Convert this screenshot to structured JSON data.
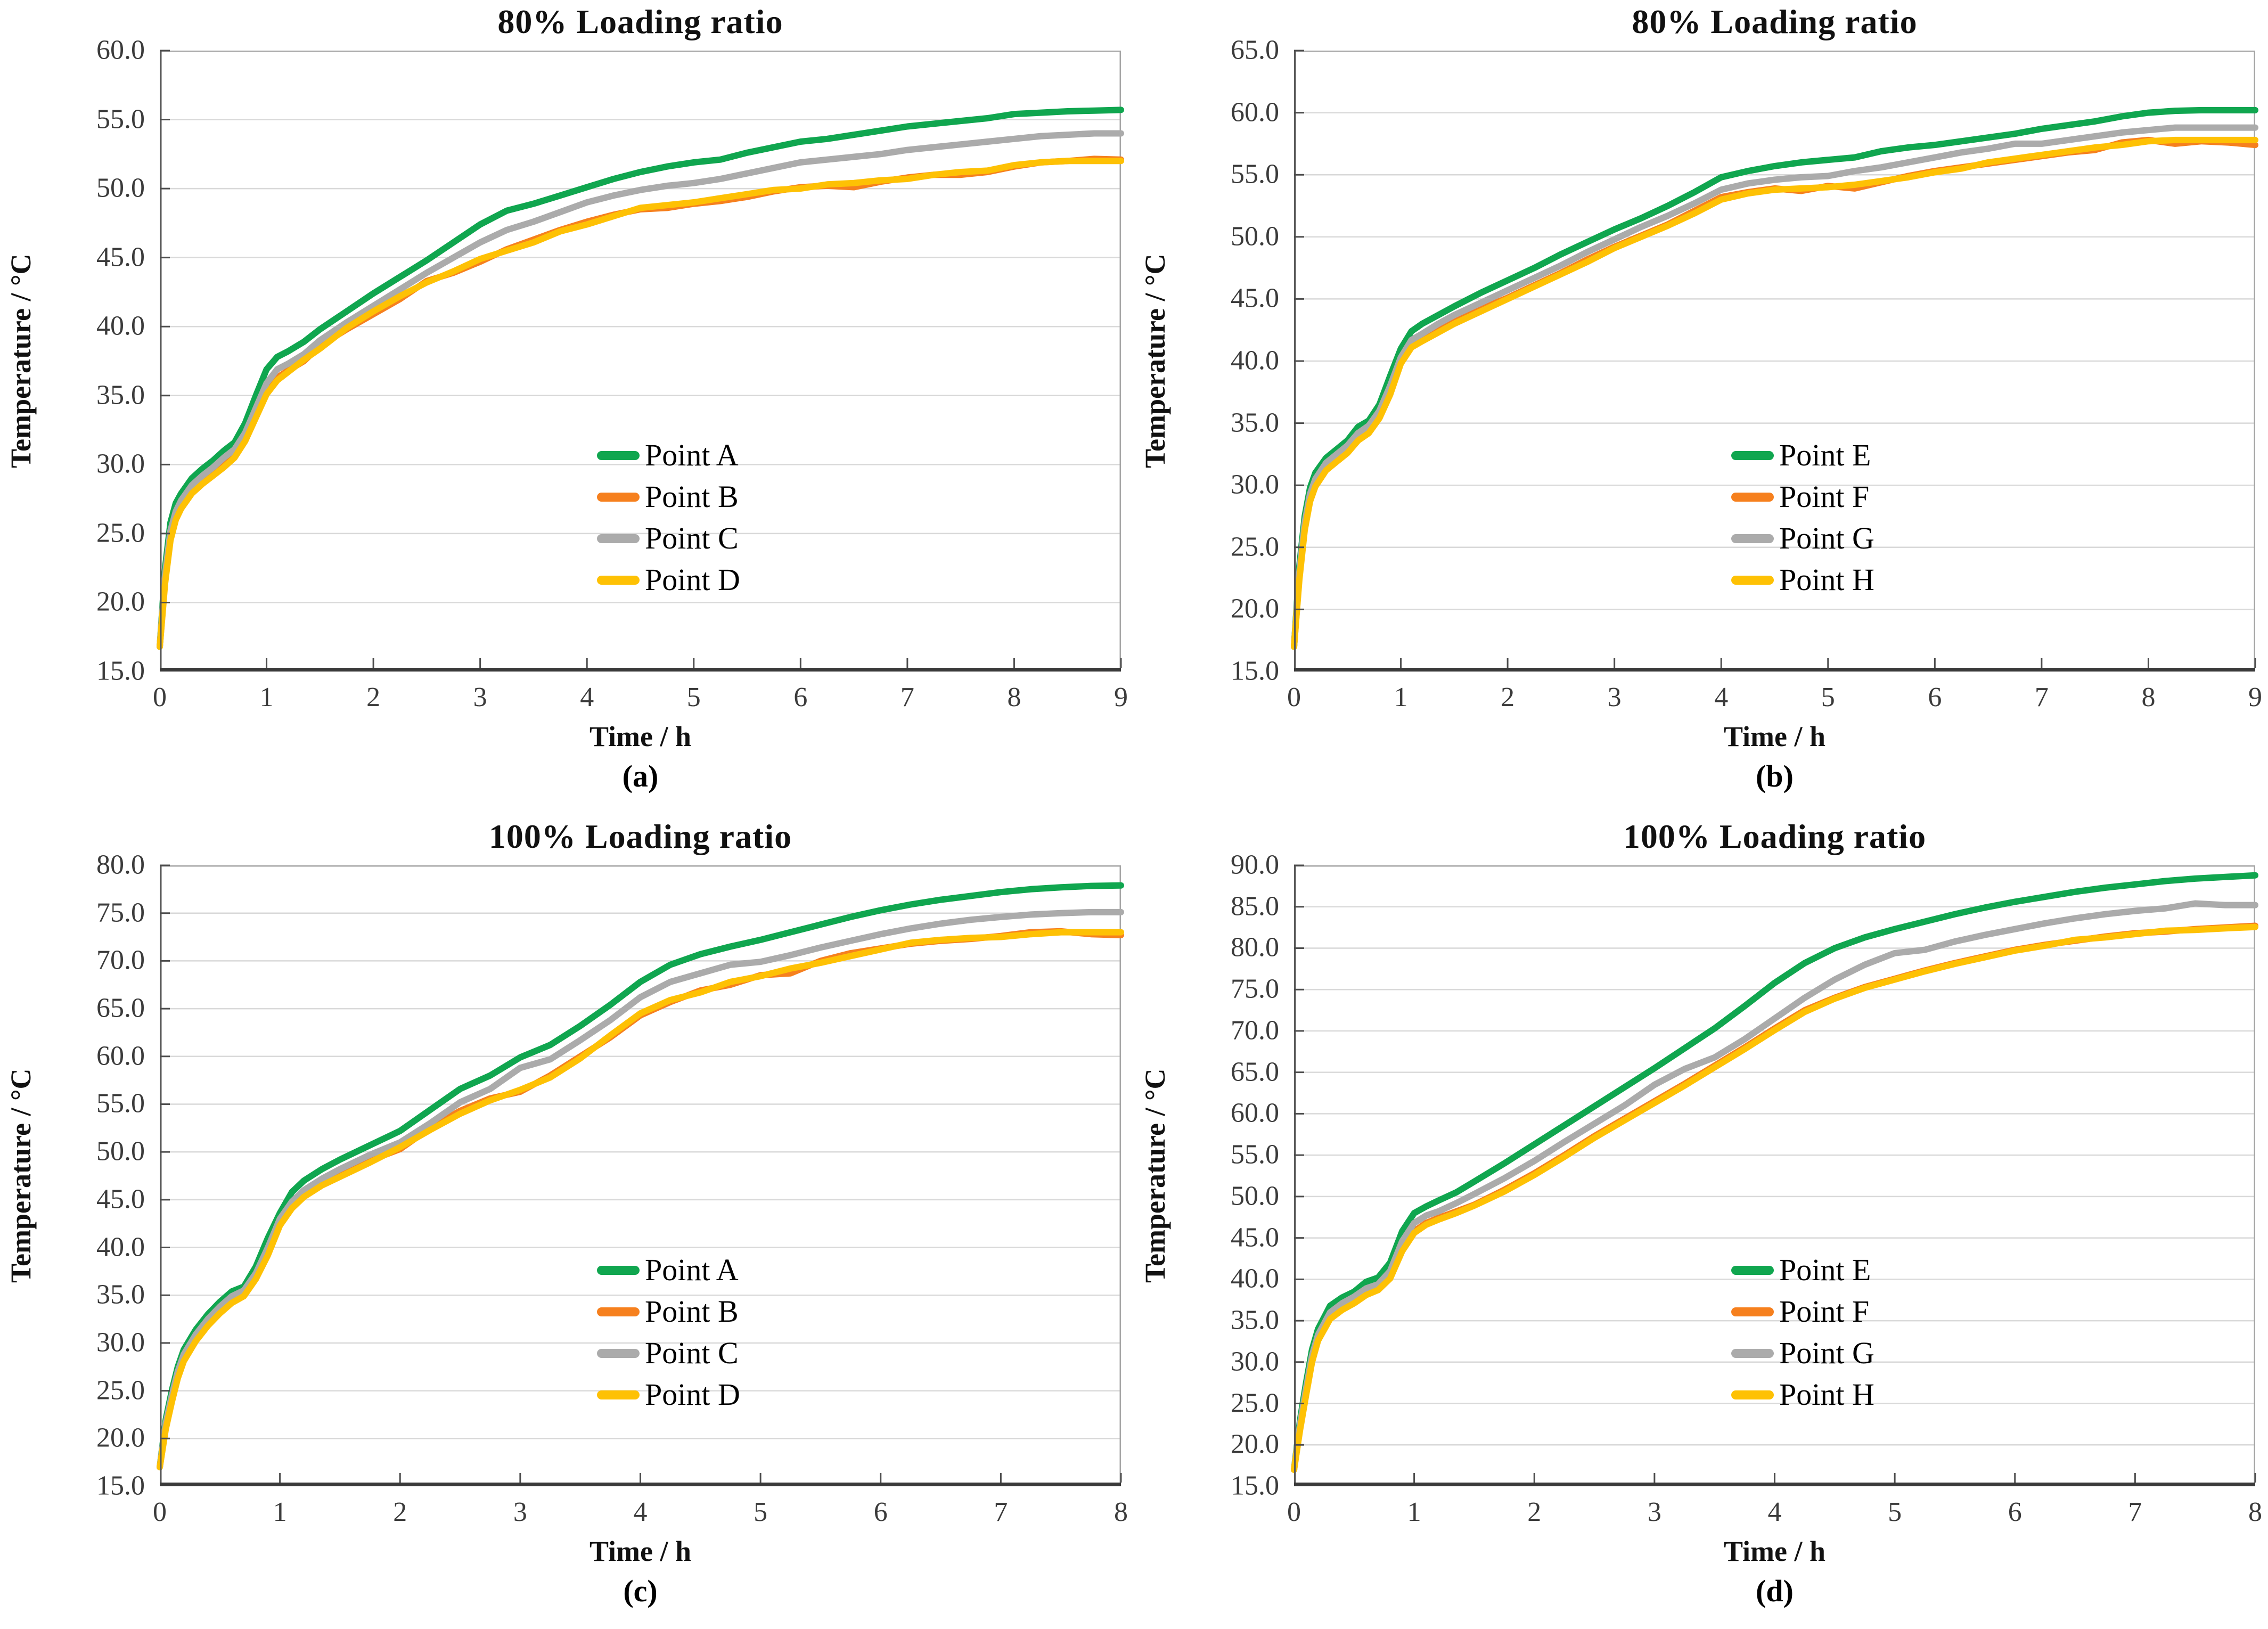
{
  "style": {
    "background": "#FFFFFF",
    "grid_color": "#D9D9D9",
    "border_color": "#A6A6A6",
    "left_axis_color": "#595959",
    "bottom_axis_color": "#3A3A3A",
    "tick_mark_color": "#4D4D4D",
    "tick_label_color": "#3B3B3B",
    "series_colors": {
      "green": "#10A64F",
      "orange": "#F6801E",
      "gray": "#ABABAB",
      "yellow": "#FEC104"
    }
  },
  "chart_data": [
    {
      "type": "line",
      "title": "80% Loading ratio",
      "caption": "(a)",
      "xlabel": "Time / h",
      "ylabel": "Temperature / °C",
      "xlim": [
        0,
        9
      ],
      "ylim": [
        15,
        60
      ],
      "xtick_step": 1,
      "ytick_step": 5,
      "grid": true,
      "legend_position": "inside lower right",
      "x": [
        0,
        0.05,
        0.1,
        0.15,
        0.2,
        0.3,
        0.4,
        0.5,
        0.6,
        0.7,
        0.8,
        0.9,
        1,
        1.1,
        1.2,
        1.35,
        1.5,
        1.75,
        2,
        2.25,
        2.5,
        2.75,
        3,
        3.25,
        3.5,
        3.75,
        4,
        4.25,
        4.5,
        4.75,
        5,
        5.25,
        5.5,
        5.75,
        6,
        6.25,
        6.5,
        6.75,
        7,
        7.25,
        7.5,
        7.75,
        8,
        8.25,
        8.5,
        8.75,
        9
      ],
      "series": [
        {
          "name": "Point A",
          "color": "#10A64F",
          "values": [
            16.8,
            22.5,
            25.8,
            27.2,
            27.9,
            29.0,
            29.7,
            30.3,
            31.0,
            31.6,
            33.0,
            35.0,
            36.9,
            37.8,
            38.2,
            38.9,
            39.8,
            41.1,
            42.4,
            43.6,
            44.8,
            46.1,
            47.4,
            48.4,
            48.9,
            49.5,
            50.1,
            50.7,
            51.2,
            51.6,
            51.9,
            52.1,
            52.6,
            53.0,
            53.4,
            53.6,
            53.9,
            54.2,
            54.5,
            54.7,
            54.9,
            55.1,
            55.4,
            55.5,
            55.6,
            55.65,
            55.7
          ]
        },
        {
          "name": "Point B",
          "color": "#F6801E",
          "values": [
            16.8,
            21.6,
            24.7,
            26.1,
            26.9,
            28.0,
            28.7,
            29.3,
            29.9,
            30.6,
            31.8,
            33.5,
            35.3,
            36.3,
            36.8,
            37.5,
            38.6,
            39.8,
            40.9,
            42.0,
            43.3,
            43.9,
            44.7,
            45.6,
            46.3,
            47.0,
            47.6,
            48.1,
            48.5,
            48.6,
            48.9,
            49.1,
            49.4,
            49.8,
            50.1,
            50.2,
            50.1,
            50.5,
            50.8,
            51.0,
            51.0,
            51.2,
            51.6,
            51.9,
            52.0,
            52.15,
            52.1
          ]
        },
        {
          "name": "Point C",
          "color": "#ABABAB",
          "values": [
            16.8,
            22.0,
            25.2,
            26.6,
            27.4,
            28.5,
            29.2,
            29.8,
            30.5,
            31.1,
            32.3,
            34.1,
            35.9,
            36.9,
            37.3,
            38.0,
            39.0,
            40.3,
            41.5,
            42.7,
            43.9,
            45.0,
            46.1,
            47.0,
            47.6,
            48.3,
            49.0,
            49.5,
            49.9,
            50.2,
            50.4,
            50.7,
            51.1,
            51.5,
            51.9,
            52.1,
            52.3,
            52.5,
            52.8,
            53.0,
            53.2,
            53.4,
            53.6,
            53.8,
            53.9,
            54.0,
            54.0
          ]
        },
        {
          "name": "Point D",
          "color": "#FEC104",
          "values": [
            16.8,
            21.4,
            24.5,
            26.0,
            26.8,
            27.9,
            28.6,
            29.2,
            29.8,
            30.5,
            31.7,
            33.4,
            35.1,
            36.1,
            36.7,
            37.6,
            38.4,
            39.9,
            41.1,
            42.2,
            43.2,
            44.0,
            44.9,
            45.5,
            46.1,
            46.9,
            47.4,
            48.0,
            48.6,
            48.8,
            49.0,
            49.3,
            49.6,
            49.9,
            50.0,
            50.3,
            50.4,
            50.6,
            50.7,
            51.0,
            51.2,
            51.3,
            51.7,
            51.9,
            52.0,
            52.0,
            52.0
          ]
        }
      ]
    },
    {
      "type": "line",
      "title": "80% Loading ratio",
      "caption": "(b)",
      "xlabel": "Time / h",
      "ylabel": "Temperature / °C",
      "xlim": [
        0,
        9
      ],
      "ylim": [
        15,
        65
      ],
      "xtick_step": 1,
      "ytick_step": 5,
      "grid": true,
      "legend_position": "inside lower right",
      "x": [
        0,
        0.05,
        0.1,
        0.15,
        0.2,
        0.3,
        0.4,
        0.5,
        0.6,
        0.7,
        0.8,
        0.9,
        1,
        1.1,
        1.2,
        1.35,
        1.5,
        1.75,
        2,
        2.25,
        2.5,
        2.75,
        3,
        3.25,
        3.5,
        3.75,
        4,
        4.25,
        4.5,
        4.75,
        5,
        5.25,
        5.5,
        5.75,
        6,
        6.25,
        6.5,
        6.75,
        7,
        7.25,
        7.5,
        7.75,
        8,
        8.25,
        8.5,
        8.75,
        9
      ],
      "series": [
        {
          "name": "Point E",
          "color": "#10A64F",
          "values": [
            17.0,
            23.5,
            27.5,
            29.8,
            31.0,
            32.2,
            32.9,
            33.6,
            34.7,
            35.2,
            36.5,
            38.8,
            41.0,
            42.4,
            43.0,
            43.7,
            44.4,
            45.5,
            46.5,
            47.5,
            48.6,
            49.6,
            50.6,
            51.5,
            52.5,
            53.6,
            54.8,
            55.3,
            55.7,
            56.0,
            56.2,
            56.4,
            56.9,
            57.2,
            57.4,
            57.7,
            58.0,
            58.3,
            58.7,
            59.0,
            59.3,
            59.7,
            60.0,
            60.15,
            60.2,
            60.2,
            60.2
          ]
        },
        {
          "name": "Point F",
          "color": "#F6801E",
          "values": [
            17.0,
            22.6,
            26.6,
            28.9,
            30.1,
            31.4,
            32.1,
            32.8,
            33.8,
            34.4,
            35.6,
            37.5,
            40.0,
            41.3,
            41.8,
            42.5,
            43.2,
            44.2,
            45.1,
            46.1,
            47.1,
            48.2,
            49.2,
            50.1,
            51.0,
            52.1,
            53.2,
            53.6,
            53.9,
            53.7,
            54.1,
            53.9,
            54.4,
            54.9,
            55.3,
            55.6,
            55.9,
            56.2,
            56.5,
            56.8,
            57.0,
            57.6,
            57.8,
            57.5,
            57.7,
            57.6,
            57.4
          ]
        },
        {
          "name": "Point G",
          "color": "#ABABAB",
          "values": [
            17.0,
            23.0,
            27.0,
            29.3,
            30.5,
            31.8,
            32.5,
            33.2,
            34.2,
            34.8,
            36.0,
            38.0,
            40.3,
            41.7,
            42.2,
            43.0,
            43.7,
            44.7,
            45.7,
            46.7,
            47.7,
            48.8,
            49.8,
            50.8,
            51.7,
            52.7,
            53.8,
            54.3,
            54.6,
            54.8,
            54.9,
            55.3,
            55.6,
            56.0,
            56.4,
            56.8,
            57.1,
            57.5,
            57.5,
            57.8,
            58.1,
            58.4,
            58.6,
            58.8,
            58.8,
            58.8,
            58.8
          ]
        },
        {
          "name": "Point H",
          "color": "#FEC104",
          "values": [
            17.0,
            22.4,
            26.4,
            28.7,
            29.9,
            31.2,
            31.9,
            32.6,
            33.6,
            34.2,
            35.4,
            37.3,
            39.8,
            41.1,
            41.6,
            42.3,
            43.0,
            44.0,
            45.0,
            46.0,
            47.0,
            48.0,
            49.1,
            50.0,
            50.9,
            51.9,
            53.0,
            53.5,
            53.8,
            53.9,
            54.0,
            54.2,
            54.5,
            54.8,
            55.2,
            55.5,
            56.0,
            56.3,
            56.6,
            56.9,
            57.2,
            57.4,
            57.7,
            57.8,
            57.8,
            57.8,
            57.8
          ]
        }
      ]
    },
    {
      "type": "line",
      "title": "100% Loading ratio",
      "caption": "(c)",
      "xlabel": "Time / h",
      "ylabel": "Temperature / °C",
      "xlim": [
        0,
        8
      ],
      "ylim": [
        15,
        80
      ],
      "xtick_step": 1,
      "ytick_step": 5,
      "grid": true,
      "legend_position": "inside lower right",
      "x": [
        0,
        0.05,
        0.1,
        0.15,
        0.2,
        0.3,
        0.4,
        0.5,
        0.6,
        0.7,
        0.8,
        0.9,
        1,
        1.1,
        1.2,
        1.35,
        1.5,
        1.75,
        2,
        2.25,
        2.5,
        2.75,
        3,
        3.25,
        3.5,
        3.75,
        4,
        4.25,
        4.5,
        4.75,
        5,
        5.25,
        5.5,
        5.75,
        6,
        6.25,
        6.5,
        6.75,
        7,
        7.25,
        7.5,
        7.75,
        8
      ],
      "series": [
        {
          "name": "Point A",
          "color": "#10A64F",
          "values": [
            17.0,
            22.0,
            25.0,
            27.5,
            29.3,
            31.4,
            33.0,
            34.3,
            35.4,
            35.9,
            38.0,
            41.0,
            43.6,
            45.8,
            47.0,
            48.2,
            49.2,
            50.7,
            52.2,
            54.4,
            56.6,
            58.0,
            59.9,
            61.2,
            63.2,
            65.4,
            67.8,
            69.6,
            70.7,
            71.5,
            72.2,
            73.0,
            73.8,
            74.6,
            75.3,
            75.9,
            76.4,
            76.8,
            77.2,
            77.5,
            77.7,
            77.85,
            77.9
          ]
        },
        {
          "name": "Point B",
          "color": "#F6801E",
          "values": [
            17.0,
            21.2,
            24.0,
            26.5,
            28.3,
            30.4,
            32.0,
            33.3,
            34.4,
            35.1,
            36.9,
            39.4,
            42.5,
            44.3,
            45.5,
            46.7,
            47.6,
            49.1,
            50.3,
            52.5,
            54.3,
            55.6,
            56.3,
            58.0,
            60.0,
            62.0,
            64.3,
            65.7,
            66.9,
            67.5,
            68.5,
            68.7,
            70.0,
            70.8,
            71.3,
            71.8,
            72.1,
            72.3,
            72.6,
            73.0,
            73.1,
            72.8,
            72.7
          ]
        },
        {
          "name": "Point C",
          "color": "#ABABAB",
          "values": [
            17.0,
            21.6,
            24.5,
            27.0,
            28.8,
            30.9,
            32.5,
            33.8,
            34.9,
            35.5,
            37.3,
            40.0,
            43.0,
            44.8,
            46.0,
            47.2,
            48.2,
            49.7,
            51.0,
            53.0,
            55.2,
            56.6,
            58.8,
            59.7,
            61.7,
            63.8,
            66.2,
            67.8,
            68.7,
            69.6,
            69.9,
            70.6,
            71.4,
            72.1,
            72.8,
            73.4,
            73.9,
            74.3,
            74.6,
            74.85,
            75.0,
            75.1,
            75.1
          ]
        },
        {
          "name": "Point D",
          "color": "#FEC104",
          "values": [
            17.0,
            21.0,
            23.8,
            26.3,
            28.1,
            30.2,
            31.8,
            33.1,
            34.2,
            34.9,
            36.7,
            39.2,
            42.3,
            44.1,
            45.3,
            46.5,
            47.4,
            48.9,
            50.5,
            52.3,
            54.0,
            55.4,
            56.5,
            57.8,
            59.8,
            62.2,
            64.5,
            65.9,
            66.7,
            67.8,
            68.4,
            69.2,
            69.8,
            70.5,
            71.2,
            71.9,
            72.2,
            72.4,
            72.5,
            72.8,
            73.0,
            73.0,
            73.0
          ]
        }
      ]
    },
    {
      "type": "line",
      "title": "100% Loading ratio",
      "caption": "(d)",
      "xlabel": "Time / h",
      "ylabel": "Temperature / °C",
      "xlim": [
        0,
        8
      ],
      "ylim": [
        15,
        90
      ],
      "xtick_step": 1,
      "ytick_step": 5,
      "grid": true,
      "legend_position": "inside lower right",
      "x": [
        0,
        0.05,
        0.1,
        0.15,
        0.2,
        0.3,
        0.4,
        0.5,
        0.6,
        0.7,
        0.8,
        0.9,
        1,
        1.1,
        1.2,
        1.35,
        1.5,
        1.75,
        2,
        2.25,
        2.5,
        2.75,
        3,
        3.25,
        3.5,
        3.75,
        4,
        4.25,
        4.5,
        4.75,
        5,
        5.25,
        5.5,
        5.75,
        6,
        6.25,
        6.5,
        6.75,
        7,
        7.25,
        7.5,
        7.75,
        8
      ],
      "series": [
        {
          "name": "Point E",
          "color": "#10A64F",
          "values": [
            17.0,
            23.0,
            27.5,
            31.5,
            34.0,
            36.8,
            37.8,
            38.5,
            39.7,
            40.2,
            42.0,
            45.8,
            48.0,
            48.8,
            49.5,
            50.5,
            51.8,
            54.0,
            56.3,
            58.6,
            60.9,
            63.2,
            65.5,
            67.9,
            70.3,
            73.0,
            75.8,
            78.2,
            80.0,
            81.3,
            82.3,
            83.2,
            84.1,
            84.9,
            85.6,
            86.2,
            86.8,
            87.3,
            87.7,
            88.1,
            88.4,
            88.6,
            88.8
          ]
        },
        {
          "name": "Point F",
          "color": "#F6801E",
          "values": [
            17.0,
            22.0,
            26.2,
            30.2,
            32.8,
            35.4,
            36.5,
            37.3,
            38.3,
            38.9,
            40.3,
            43.6,
            45.8,
            46.8,
            47.4,
            48.2,
            49.0,
            50.8,
            52.8,
            55.0,
            57.3,
            59.4,
            61.5,
            63.6,
            65.8,
            68.0,
            70.3,
            72.5,
            74.0,
            75.3,
            76.3,
            77.3,
            78.2,
            79.0,
            79.8,
            80.4,
            80.9,
            81.4,
            81.8,
            82.0,
            82.3,
            82.5,
            82.7
          ]
        },
        {
          "name": "Point G",
          "color": "#ABABAB",
          "values": [
            17.0,
            22.5,
            26.8,
            30.8,
            33.3,
            36.0,
            37.1,
            37.9,
            38.9,
            39.4,
            41.0,
            44.6,
            46.8,
            47.7,
            48.2,
            49.2,
            50.3,
            52.2,
            54.3,
            56.6,
            58.8,
            61.0,
            63.5,
            65.4,
            66.8,
            69.0,
            71.5,
            74.0,
            76.2,
            78.0,
            79.4,
            79.8,
            80.8,
            81.6,
            82.3,
            83.0,
            83.6,
            84.1,
            84.5,
            84.8,
            85.4,
            85.2,
            85.2
          ]
        },
        {
          "name": "Point H",
          "color": "#FEC104",
          "values": [
            17.0,
            21.8,
            26.0,
            30.0,
            32.6,
            35.2,
            36.3,
            37.1,
            38.1,
            38.7,
            40.1,
            43.4,
            45.6,
            46.6,
            47.2,
            48.0,
            48.9,
            50.6,
            52.6,
            54.8,
            57.1,
            59.2,
            61.3,
            63.4,
            65.6,
            67.8,
            70.1,
            72.3,
            73.9,
            75.2,
            76.2,
            77.2,
            78.1,
            78.9,
            79.7,
            80.3,
            81.0,
            81.3,
            81.7,
            82.1,
            82.2,
            82.4,
            82.55
          ]
        }
      ]
    }
  ]
}
